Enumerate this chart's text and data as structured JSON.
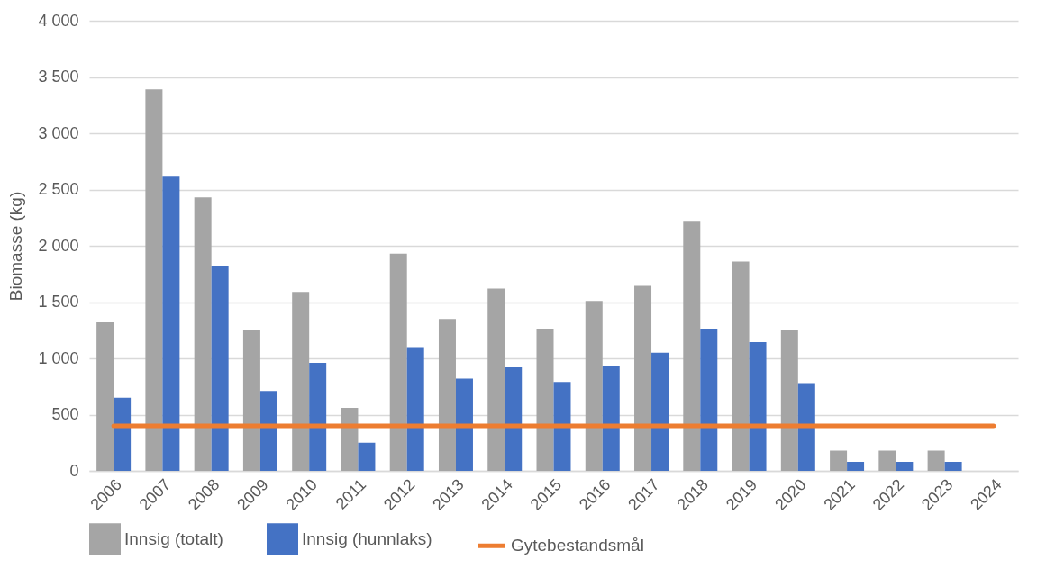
{
  "chart_data": {
    "type": "bar",
    "ylabel": "Biomasse (kg)",
    "categories": [
      "2006",
      "2007",
      "2008",
      "2009",
      "2010",
      "2011",
      "2012",
      "2013",
      "2014",
      "2015",
      "2016",
      "2017",
      "2018",
      "2019",
      "2020",
      "2021",
      "2022",
      "2023",
      "2024"
    ],
    "series": [
      {
        "name": "Innsig (totalt)",
        "color": "#a5a5a5",
        "values": [
          1320,
          3390,
          2430,
          1250,
          1590,
          560,
          1930,
          1350,
          1620,
          1265,
          1510,
          1645,
          2215,
          1860,
          1255,
          180,
          180,
          180,
          null
        ]
      },
      {
        "name": "Innsig (hunnlaks)",
        "color": "#4472c4",
        "values": [
          650,
          2615,
          1820,
          710,
          960,
          250,
          1100,
          820,
          920,
          790,
          930,
          1050,
          1265,
          1145,
          780,
          80,
          80,
          80,
          0
        ]
      },
      {
        "name": "Gytebestandsmål",
        "type": "line",
        "color": "#ed7d31",
        "values": [
          400,
          400,
          400,
          400,
          400,
          400,
          400,
          400,
          400,
          400,
          400,
          400,
          400,
          400,
          400,
          400,
          400,
          400,
          400
        ]
      }
    ],
    "ylim": [
      0,
      4000
    ],
    "yticks": [
      0,
      500,
      {
        "value": 1000,
        "label": "1 000"
      },
      {
        "value": 1500,
        "label": "1 500"
      },
      {
        "value": 2000,
        "label": "2 000"
      },
      {
        "value": 2500,
        "label": "2 500"
      },
      {
        "value": 3000,
        "label": "3 000"
      },
      {
        "value": 3500,
        "label": "3 500"
      },
      {
        "value": 4000,
        "label": "4 000"
      }
    ],
    "grid": "y",
    "legend": "bottom"
  }
}
